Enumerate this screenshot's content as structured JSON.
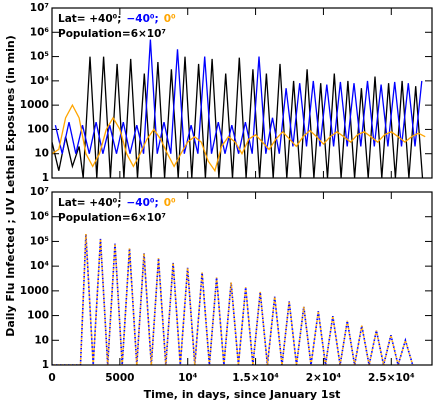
{
  "chart_data": [
    {
      "type": "line",
      "log_y": true,
      "ylabel": "Daily Flu Infected ; UV Lethal Exposures (in min)",
      "legend": [
        {
          "text": "Lat= +40⁰;",
          "color": "#000000"
        },
        {
          "text": "−40⁰;",
          "color": "#0000ff"
        },
        {
          "text": "0⁰",
          "color": "#ffa500"
        }
      ],
      "annotation": "Population=6×10⁷",
      "xlim": [
        0,
        28000
      ],
      "xticks": [
        0,
        5000,
        10000,
        15000,
        20000,
        25000
      ],
      "ylim": [
        1,
        10000000
      ],
      "yticks": [
        1,
        10,
        100,
        1000,
        {
          "value": 10000,
          "label": "10⁴"
        },
        {
          "value": 100000,
          "label": "10⁵"
        },
        {
          "value": 1000000,
          "label": "10⁶"
        },
        {
          "value": 10000000,
          "label": "10⁷"
        }
      ],
      "series": [
        {
          "color": "#000000",
          "x": [
            0,
            500,
            1000,
            1500,
            2000,
            2300,
            2800,
            3300,
            3800,
            4300,
            4800,
            5300,
            5800,
            6300,
            6800,
            7300,
            7800,
            8300,
            8800,
            9300,
            9800,
            10300,
            10800,
            11300,
            11800,
            12300,
            12800,
            13300,
            13800,
            14300,
            14800,
            15300,
            15800,
            16300,
            16800,
            17300,
            17800,
            18300,
            18800,
            19300,
            19800,
            20300,
            20800,
            21300,
            21800,
            22300,
            22800,
            23300,
            23800,
            24300,
            24800,
            25300,
            25800,
            26300,
            26800,
            27300
          ],
          "values": [
            30,
            2,
            50,
            3,
            20,
            1,
            100000,
            1,
            100000,
            1,
            50000,
            1,
            80000,
            1,
            20000,
            1,
            60000,
            1,
            30000,
            1,
            100000,
            1,
            50000,
            1,
            80000,
            1,
            20000,
            1,
            90000,
            1,
            30000,
            1,
            20000,
            1,
            50000,
            1,
            10000,
            1,
            30000,
            1,
            8000,
            1,
            20000,
            1,
            10000,
            1,
            5000,
            1,
            15000,
            1,
            8000,
            1,
            10000,
            1,
            6000,
            1
          ]
        },
        {
          "color": "#0000ff",
          "x": [
            250,
            750,
            1250,
            1750,
            2250,
            2750,
            3250,
            3750,
            4250,
            4750,
            5250,
            5750,
            6250,
            6750,
            7250,
            7750,
            8250,
            8750,
            9250,
            9750,
            10250,
            10750,
            11250,
            11750,
            12250,
            12750,
            13250,
            13750,
            14250,
            14750,
            15250,
            15750,
            16250,
            16750,
            17250,
            17750,
            18250,
            18750,
            19250,
            19750,
            20250,
            20750,
            21250,
            21750,
            22250,
            22750,
            23250,
            23750,
            24250,
            24750,
            25250,
            25750,
            26250,
            26750,
            27250
          ],
          "values": [
            150,
            10,
            200,
            10,
            150,
            10,
            200,
            10,
            150,
            10,
            200,
            10,
            150,
            10,
            500000,
            10,
            200,
            10,
            200000,
            10,
            150,
            10,
            100000,
            10,
            200,
            10,
            150,
            10,
            200,
            10,
            100000,
            10,
            300,
            10,
            5000,
            20,
            8000,
            20,
            10000,
            20,
            7000,
            20,
            9000,
            20,
            8000,
            20,
            10000,
            20,
            7000,
            20,
            9000,
            20,
            8000,
            20,
            10000
          ]
        },
        {
          "color": "#ffa500",
          "x": [
            0,
            500,
            1000,
            1500,
            2000,
            2500,
            3000,
            3500,
            4000,
            4500,
            5000,
            5500,
            6000,
            6500,
            7000,
            7500,
            8000,
            8500,
            9000,
            9500,
            10000,
            10500,
            11000,
            11500,
            12000,
            12500,
            13000,
            13500,
            14000,
            14500,
            15000,
            15500,
            16000,
            16500,
            17000,
            17500,
            18000,
            18500,
            19000,
            19500,
            20000,
            20500,
            21000,
            21500,
            22000,
            22500,
            23000,
            23500,
            24000,
            24500,
            25000,
            25500,
            26000,
            26500,
            27000,
            27500
          ],
          "values": [
            10,
            15,
            300,
            1000,
            300,
            10,
            3,
            10,
            100,
            300,
            100,
            10,
            3,
            10,
            40,
            100,
            40,
            10,
            3,
            10,
            30,
            50,
            30,
            5,
            2,
            20,
            50,
            30,
            10,
            40,
            60,
            30,
            15,
            40,
            80,
            40,
            20,
            50,
            90,
            50,
            25,
            50,
            80,
            50,
            30,
            60,
            80,
            50,
            30,
            60,
            80,
            50,
            30,
            50,
            70,
            50
          ]
        }
      ]
    },
    {
      "type": "line",
      "log_y": true,
      "legend": [
        {
          "text": "Lat= +40⁰;",
          "color": "#000000"
        },
        {
          "text": "−40⁰;",
          "color": "#0000ff"
        },
        {
          "text": "0⁰",
          "color": "#ffa500"
        }
      ],
      "annotation": "Population=6×10⁷",
      "xlabel": "Time, in days, since January 1st",
      "xlim": [
        0,
        28000
      ],
      "xticks": [
        0,
        5000,
        {
          "value": 10000,
          "label": "10⁴"
        },
        {
          "value": 15000,
          "label": "1.5×10⁴"
        },
        {
          "value": 20000,
          "label": "2×10⁴"
        },
        {
          "value": 25000,
          "label": "2.5×10⁴"
        }
      ],
      "ylim": [
        1,
        10000000
      ],
      "yticks": [
        1,
        10,
        100,
        1000,
        {
          "value": 10000,
          "label": "10⁴"
        },
        {
          "value": 100000,
          "label": "10⁵"
        },
        {
          "value": 1000000,
          "label": "10⁶"
        },
        {
          "value": 10000000,
          "label": "10⁷"
        }
      ],
      "series": [
        {
          "color": "#0000ff",
          "dotted": true,
          "x": [
            0,
            2100,
            2500,
            3035,
            3570,
            4105,
            4640,
            5175,
            5710,
            6245,
            6780,
            7315,
            7850,
            8385,
            8920,
            9455,
            9990,
            10525,
            11060,
            11595,
            12130,
            12665,
            13200,
            13735,
            14270,
            14805,
            15340,
            15875,
            16410,
            16945,
            17480,
            18015,
            18550,
            19085,
            19620,
            20155,
            20690,
            21225,
            21760,
            22295,
            22830,
            23365,
            23900,
            24435,
            24970,
            25505,
            26040,
            26575
          ],
          "values": [
            1,
            1,
            200000,
            1,
            126000,
            1,
            81000,
            1,
            52000,
            1,
            33000,
            1,
            21000,
            1,
            13500,
            1,
            8600,
            1,
            5500,
            1,
            3500,
            1,
            2200,
            1,
            1400,
            1,
            900,
            1,
            580,
            1,
            370,
            1,
            230,
            1,
            150,
            1,
            95,
            1,
            61,
            1,
            39,
            1,
            25,
            1,
            16,
            1,
            10,
            1
          ]
        },
        {
          "color": "#ffa500",
          "dotted": true,
          "x": [
            0,
            2100,
            2500,
            3035,
            3570,
            4105,
            4640,
            5175,
            5710,
            6245,
            6780,
            7315,
            7850,
            8385,
            8920,
            9455,
            9990,
            10525,
            11060,
            11595,
            12130,
            12665,
            13200,
            13735,
            14270,
            14805,
            15340,
            15875,
            16410,
            16945,
            17480,
            18015,
            18550,
            19085,
            19620,
            20155,
            20690,
            21225,
            21760,
            22295,
            22830,
            23365,
            23900,
            24435,
            24970,
            25505,
            26040,
            26575
          ],
          "values": [
            1,
            1,
            200000,
            1,
            126000,
            1,
            81000,
            1,
            52000,
            1,
            33000,
            1,
            21000,
            1,
            13500,
            1,
            8600,
            1,
            5500,
            1,
            3500,
            1,
            2200,
            1,
            1400,
            1,
            900,
            1,
            580,
            1,
            370,
            1,
            230,
            1,
            150,
            1,
            95,
            1,
            61,
            1,
            39,
            1,
            25,
            1,
            16,
            1,
            10,
            1
          ]
        }
      ]
    }
  ]
}
